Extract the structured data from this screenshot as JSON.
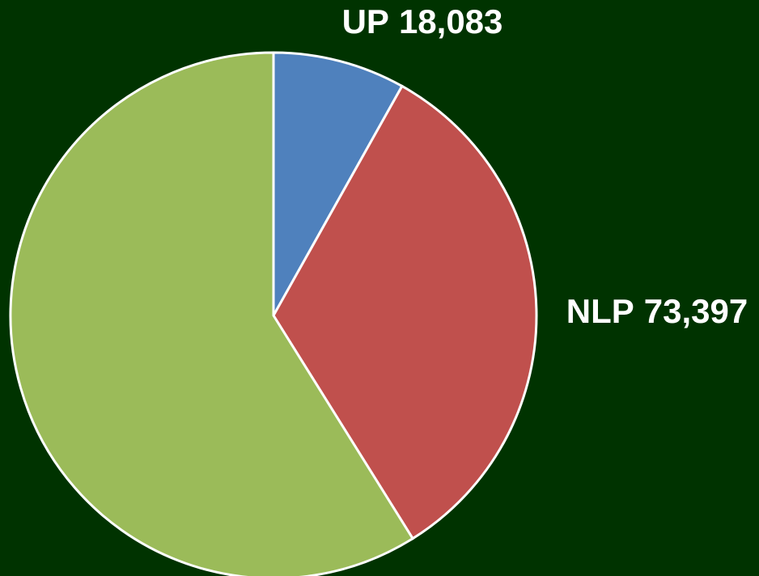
{
  "chart_data": {
    "type": "pie",
    "categories": [
      "UP",
      "NLP",
      null
    ],
    "values": [
      18083,
      73397,
      131000
    ],
    "value_labels": [
      "18,083",
      "73,397",
      null
    ],
    "colors": [
      "#4f81bd",
      "#c0504d",
      "#9bbb59"
    ],
    "background": "#003300"
  }
}
